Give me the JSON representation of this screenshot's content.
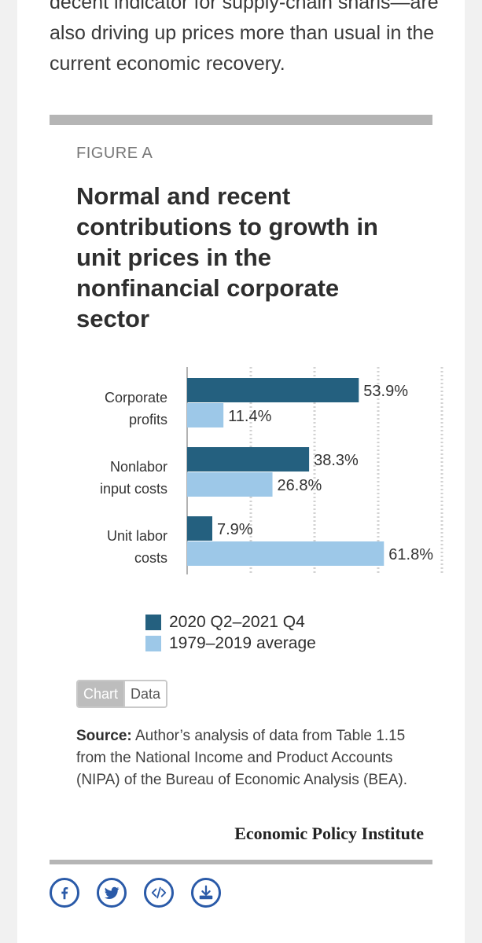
{
  "article": {
    "intro_text": "decent indicator for supply-chain snarls—are also driving up prices more than usual in the current economic recovery."
  },
  "figure": {
    "label": "FIGURE A",
    "title": "Normal and recent contributions to growth in unit prices in the nonfinancial corporate sector"
  },
  "chart_data": {
    "type": "bar",
    "orientation": "horizontal",
    "categories": [
      "Corporate profits",
      "Nonlabor input costs",
      "Unit labor costs"
    ],
    "category_lines": [
      [
        "Corporate",
        "profits"
      ],
      [
        "Nonlabor",
        "input costs"
      ],
      [
        "Unit labor",
        "costs"
      ]
    ],
    "series": [
      {
        "name": "2020 Q2–2021 Q4",
        "color": "#24607f",
        "values": [
          53.9,
          38.3,
          7.9
        ],
        "labels": [
          "53.9%",
          "38.3%",
          "7.9%"
        ]
      },
      {
        "name": "1979–2019 average",
        "color": "#9dc8e8",
        "values": [
          11.4,
          26.8,
          61.8
        ],
        "labels": [
          "11.4%",
          "26.8%",
          "61.8%"
        ]
      }
    ],
    "xlim": [
      0,
      80
    ],
    "grid": true,
    "title": "Normal and recent contributions to growth in unit prices in the nonfinancial corporate sector",
    "xlabel": "",
    "ylabel": ""
  },
  "legend": {
    "items": [
      {
        "label": "2020 Q2–2021 Q4",
        "color": "#24607f"
      },
      {
        "label": "1979–2019 average",
        "color": "#9dc8e8"
      }
    ]
  },
  "toggle": {
    "chart_label": "Chart",
    "data_label": "Data"
  },
  "source": {
    "prefix": "Source:",
    "text": " Author’s analysis of data from Table 1.15 from the National Income and Product Accounts (NIPA) of the Bureau of Economic Analysis (BEA)."
  },
  "brand": {
    "name": "Economic Policy Institute"
  },
  "share": {
    "icons": [
      "facebook-icon",
      "twitter-icon",
      "embed-icon",
      "download-icon"
    ],
    "color": "#2a5aa8"
  }
}
